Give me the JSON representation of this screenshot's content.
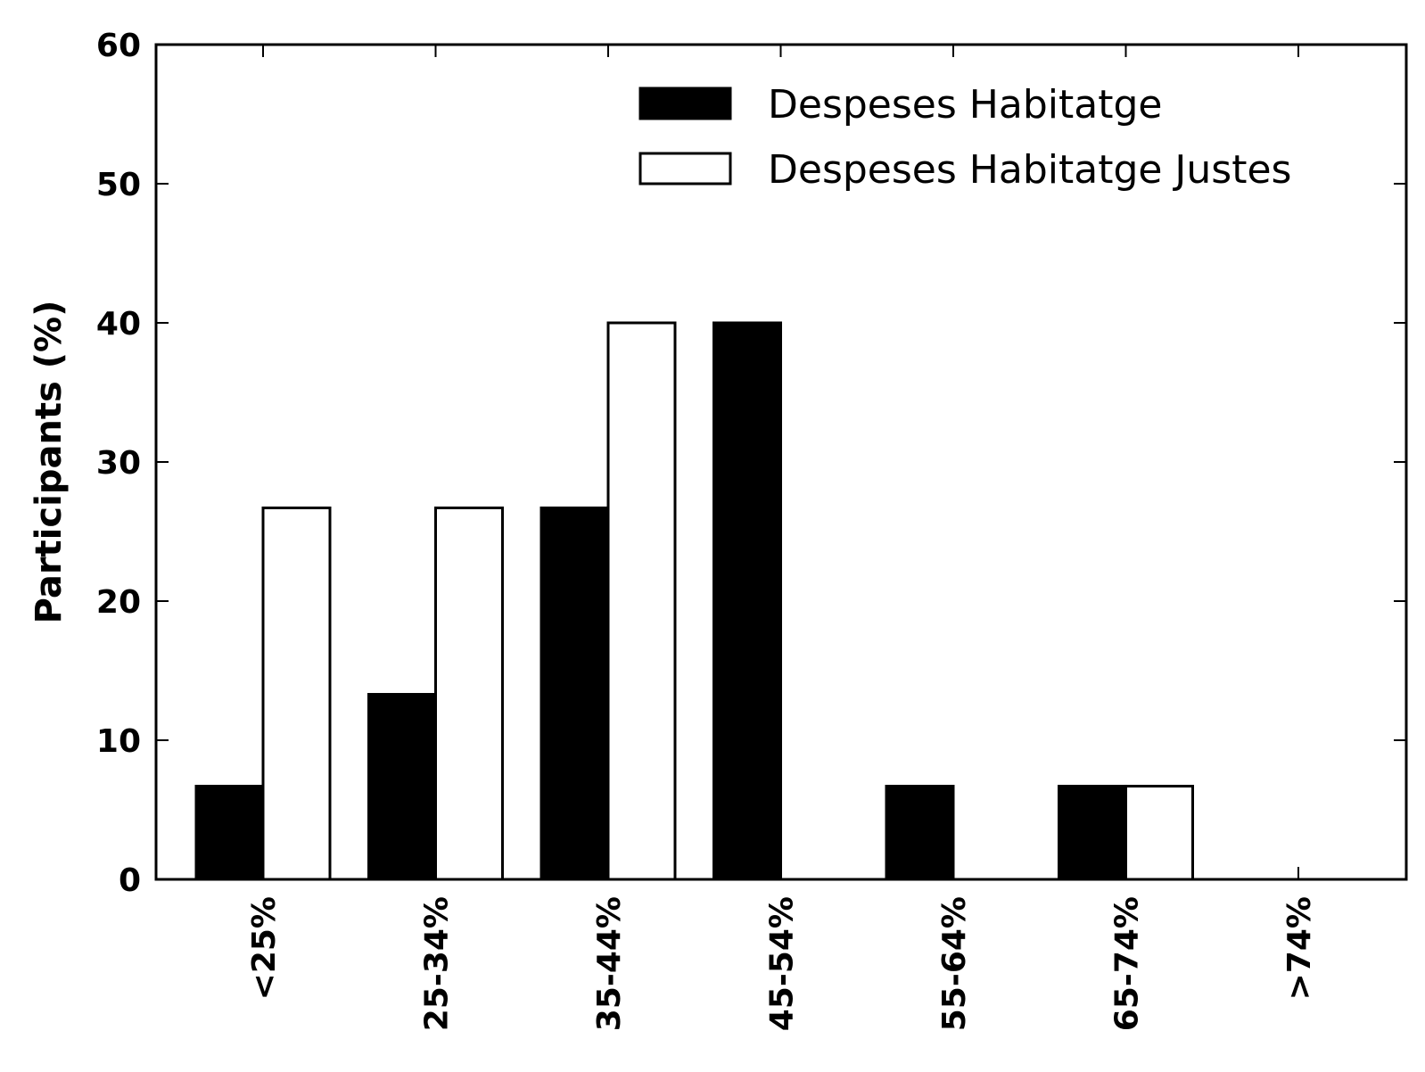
{
  "chart_data": {
    "type": "bar",
    "categories": [
      "<25%",
      "25-34%",
      "35-44%",
      "45-54%",
      "55-64%",
      "65-74%",
      ">74%"
    ],
    "series": [
      {
        "name": "Despeses Habitatge",
        "values": [
          6.7,
          13.3,
          26.7,
          40.0,
          6.7,
          6.7,
          0
        ],
        "fill": "#000000",
        "stroke": "#000000"
      },
      {
        "name": "Despeses Habitatge Justes",
        "values": [
          26.7,
          26.7,
          40.0,
          0,
          0,
          6.7,
          0
        ],
        "fill": "#ffffff",
        "stroke": "#000000"
      }
    ],
    "ylabel": "Participants (%)",
    "xlabel": "",
    "ylim": [
      0,
      60
    ],
    "yticks": [
      0,
      10,
      20,
      30,
      40,
      50,
      60
    ],
    "grid": false,
    "legend": "top-right"
  }
}
